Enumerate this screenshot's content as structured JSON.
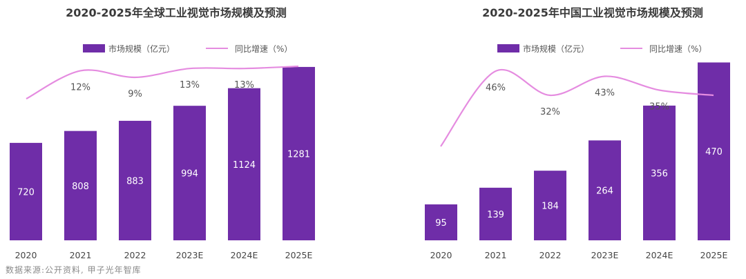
{
  "colors": {
    "bar": "#6f2da8",
    "line": "#e58ce0"
  },
  "source": "数据来源:公开资料,  甲子光年智库",
  "chart_data": [
    {
      "type": "bar",
      "title": "2020-2025年全球工业视觉市场规模及预测",
      "legend": [
        "市场规模（亿元）",
        "同比增速（%）"
      ],
      "legend_placement": "top",
      "categories": [
        "2020",
        "2021",
        "2022",
        "2023E",
        "2024E",
        "2025E"
      ],
      "series": [
        {
          "name": "市场规模（亿元）",
          "type": "bar",
          "values": [
            720,
            808,
            883,
            994,
            1124,
            1281
          ]
        },
        {
          "name": "同比增速（%）",
          "type": "line",
          "values": [
            null,
            12,
            9,
            13,
            13,
            14
          ]
        }
      ],
      "labels": {
        "bars": [
          "720",
          "808",
          "883",
          "994",
          "1124",
          "1281"
        ],
        "rates": [
          "",
          "12%",
          "9%",
          "13%",
          "13%",
          ""
        ]
      },
      "grid": false
    },
    {
      "type": "bar",
      "title": "2020-2025年中国工业视觉市场规模及预测",
      "legend": [
        "市场规模（亿元）",
        "同比增速（%）"
      ],
      "legend_placement": "top",
      "categories": [
        "2020",
        "2021",
        "2022",
        "2023E",
        "2024E",
        "2025E"
      ],
      "series": [
        {
          "name": "市场规模（亿元）",
          "type": "bar",
          "values": [
            95,
            139,
            184,
            264,
            356,
            470
          ]
        },
        {
          "name": "同比增速（%）",
          "type": "line",
          "values": [
            null,
            46,
            32,
            43,
            35,
            32
          ]
        }
      ],
      "labels": {
        "bars": [
          "95",
          "139",
          "184",
          "264",
          "356",
          "470"
        ],
        "rates": [
          "",
          "46%",
          "32%",
          "43%",
          "35%",
          ""
        ]
      },
      "grid": false
    }
  ]
}
